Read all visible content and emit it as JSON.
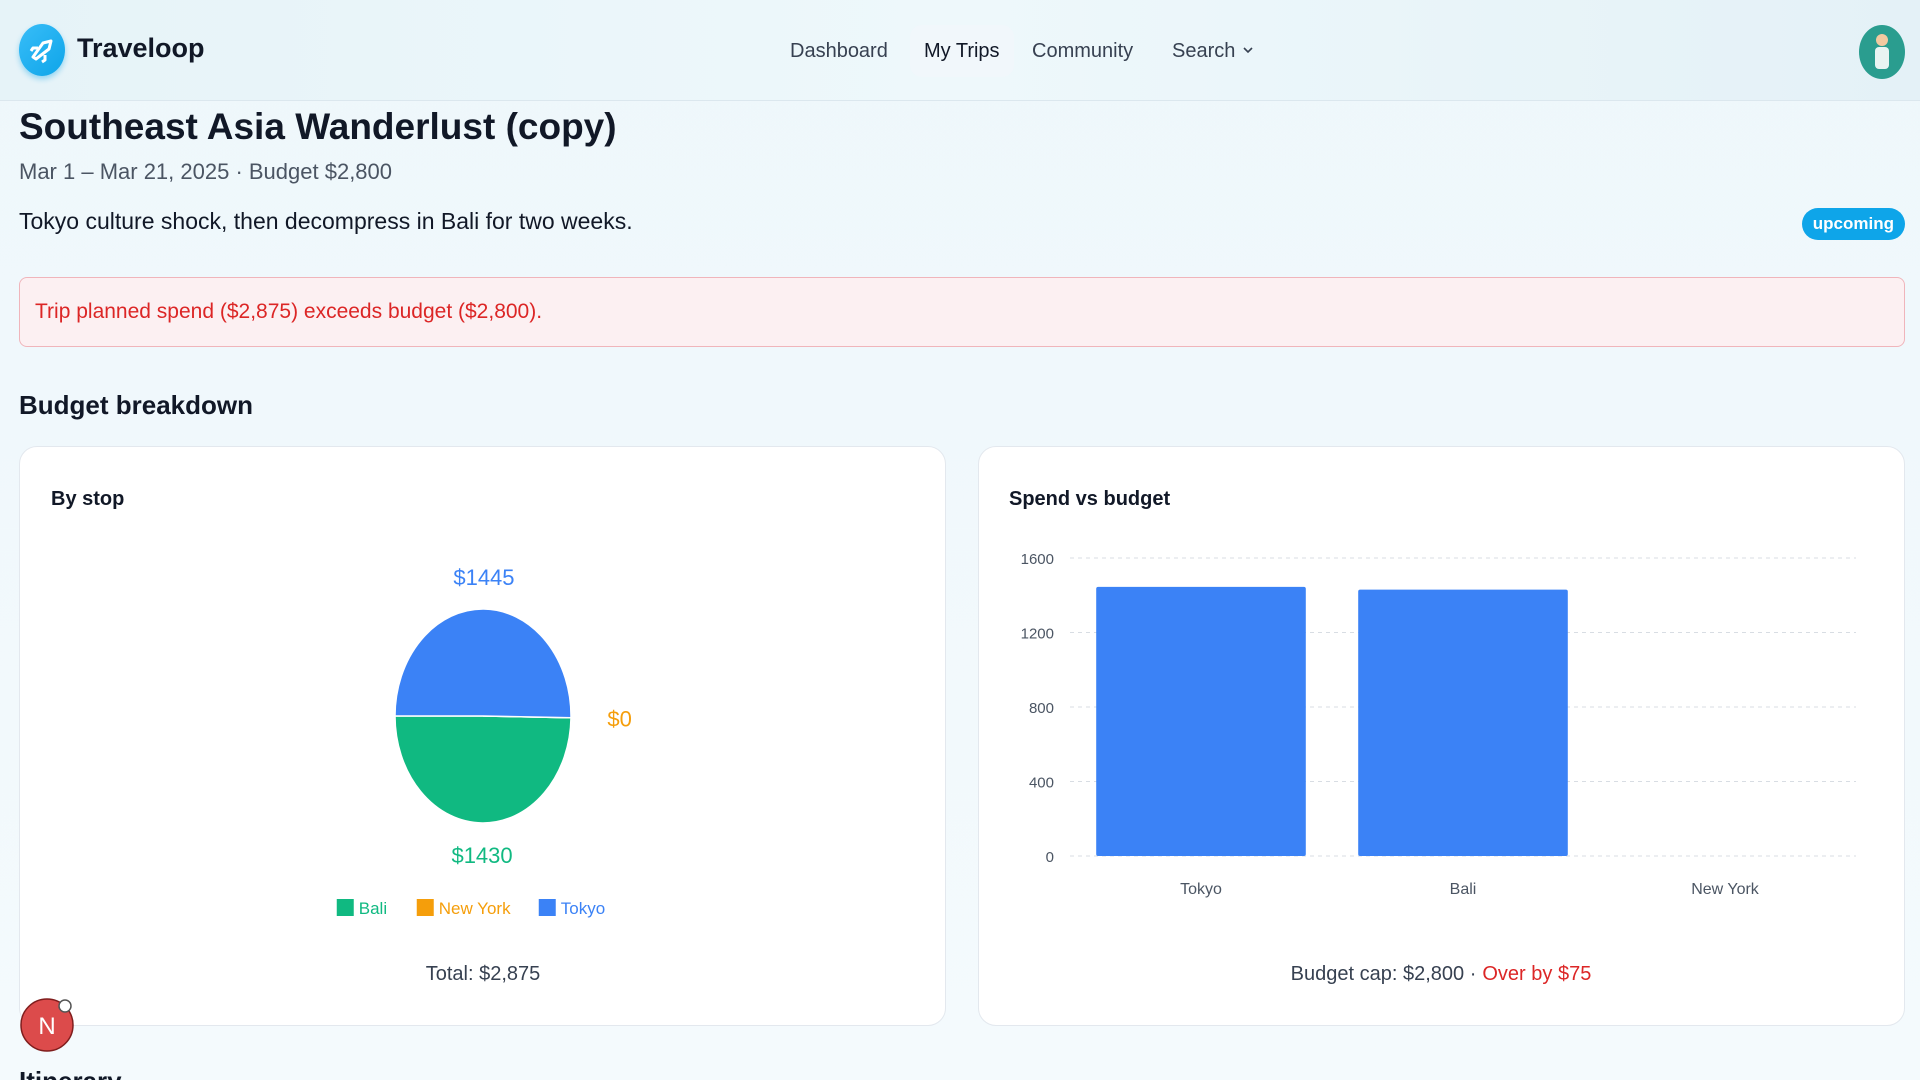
{
  "header": {
    "brand": "Traveloop",
    "nav": [
      "Dashboard",
      "My Trips",
      "Community",
      "Search"
    ]
  },
  "trip": {
    "title": "Southeast Asia Wanderlust (copy)",
    "dates": "Mar 1 – Mar 21, 2025 · Budget $2,800",
    "description": "Tokyo culture shock, then decompress in Bali for two weeks.",
    "status": "upcoming",
    "alert": "Trip planned spend ($2,875) exceeds budget ($2,800)."
  },
  "section_title": "Budget breakdown",
  "chart_data": [
    {
      "type": "pie",
      "title": "By stop",
      "categories": [
        "Bali",
        "New York",
        "Tokyo"
      ],
      "values": [
        1430,
        0,
        1445
      ],
      "value_labels": [
        "$1430",
        "$0",
        "$1445"
      ],
      "colors": [
        "#10b981",
        "#f59e0b",
        "#3b82f6"
      ],
      "footer": "Total: $2,875"
    },
    {
      "type": "bar",
      "title": "Spend vs budget",
      "categories": [
        "Tokyo",
        "Bali",
        "New York"
      ],
      "values": [
        1445,
        1430,
        0
      ],
      "color": "#3b82f6",
      "ylim": [
        0,
        1600
      ],
      "yticks": [
        0,
        400,
        800,
        1200,
        1600
      ],
      "grid": true,
      "footer": "Budget cap: $2,800 ·",
      "footer_note": "Over by $75"
    }
  ],
  "next_section": "Itinerary",
  "user_initial": "N"
}
